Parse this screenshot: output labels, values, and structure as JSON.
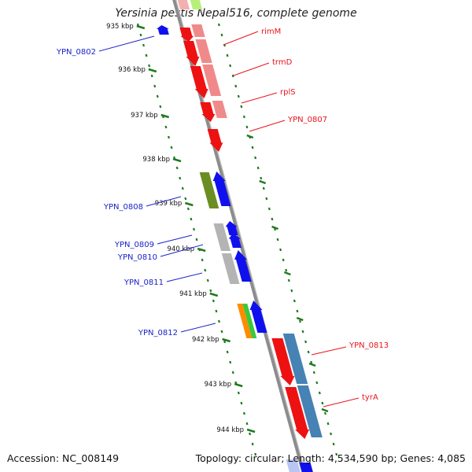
{
  "title": "Yersinia pestis Nepal516, complete genome",
  "footer": {
    "accession": "Accession: NC_008149",
    "summary": "Topology: circular; Length: 4,534,590 bp; Genes: 4,085"
  },
  "ticks": [
    {
      "label": "935 kbp"
    },
    {
      "label": "936 kbp"
    },
    {
      "label": "937 kbp"
    },
    {
      "label": "938 kbp"
    },
    {
      "label": "939 kbp"
    },
    {
      "label": "940 kbp"
    },
    {
      "label": "941 kbp"
    },
    {
      "label": "942 kbp"
    },
    {
      "label": "943 kbp"
    },
    {
      "label": "944 kbp"
    }
  ],
  "gene_labels": [
    {
      "name": "rimM",
      "strand": "right",
      "color": "#e8141c"
    },
    {
      "name": "trmD",
      "strand": "right",
      "color": "#e8141c"
    },
    {
      "name": "rplS",
      "strand": "right",
      "color": "#e8141c"
    },
    {
      "name": "YPN_0807",
      "strand": "right",
      "color": "#e8141c"
    },
    {
      "name": "YPN_0813",
      "strand": "right",
      "color": "#e8141c"
    },
    {
      "name": "tyrA",
      "strand": "right",
      "color": "#e8141c"
    },
    {
      "name": "YPN_0802",
      "strand": "left",
      "color": "#1a23c8"
    },
    {
      "name": "YPN_0808",
      "strand": "left",
      "color": "#1a23c8"
    },
    {
      "name": "YPN_0809",
      "strand": "left",
      "color": "#1a23c8"
    },
    {
      "name": "YPN_0810",
      "strand": "left",
      "color": "#1a23c8"
    },
    {
      "name": "YPN_0811",
      "strand": "left",
      "color": "#1a23c8"
    },
    {
      "name": "YPN_0812",
      "strand": "left",
      "color": "#1a23c8"
    }
  ],
  "colors": {
    "forward_cds": "#ee1111",
    "forward_cog_light": "#f08a8a",
    "reverse_cds": "#1010ee",
    "backbone": "#8c8c8c",
    "tick": "#1e7a1e",
    "cog_green": "#6b8e23",
    "cog_gray": "#b4b4b4",
    "cog_steel": "#4682b4",
    "cog_orange": "#ff8c00",
    "cog_bright_green": "#3cc83c"
  }
}
